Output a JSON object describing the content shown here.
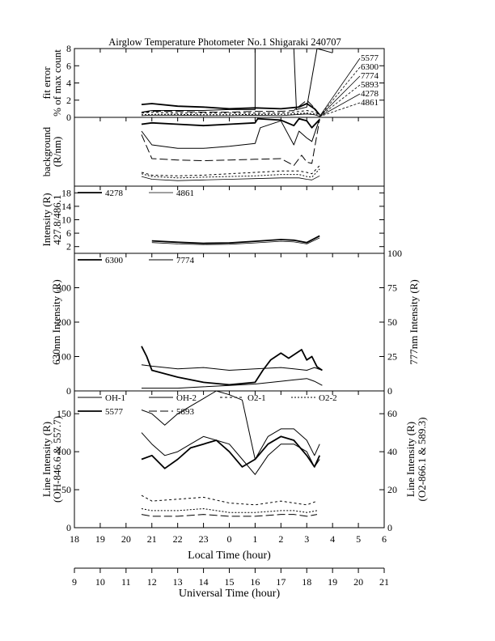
{
  "title": "Airglow Temperature Photometer No.1  Shigaraki  240707",
  "panels": [
    {
      "ylabel": [
        "fit error",
        "% of max count"
      ],
      "yticks": [
        "0",
        "2",
        "4",
        "6",
        "8"
      ]
    },
    {
      "ylabel": [
        "background",
        "(R/nm)"
      ],
      "yticks": []
    },
    {
      "ylabel": [
        "Intensity (R)",
        "427.8/486.1"
      ],
      "yticks": [
        "2",
        "6",
        "10",
        "14",
        "18"
      ],
      "legend": [
        "4278",
        "4861"
      ]
    },
    {
      "ylabel": [
        "630nm Intensity (R)"
      ],
      "ylabel_right": [
        "777nm Intensity (R)"
      ],
      "yticks": [
        "0",
        "100",
        "200",
        "300"
      ],
      "yticks_right": [
        "0",
        "25",
        "50",
        "75",
        "100"
      ],
      "legend": [
        "6300",
        "7774"
      ]
    },
    {
      "ylabel": [
        "Line Intensity (R)",
        "(OH-846.6 & 557.7)"
      ],
      "ylabel_right": [
        "Line Intensity (R)",
        "(O2-866.1 & 589.3)"
      ],
      "yticks": [
        "0",
        "50",
        "100",
        "150"
      ],
      "yticks_right": [
        "0",
        "20",
        "40",
        "60"
      ],
      "legend": [
        "OH-1",
        "OH-2",
        "O2-1",
        "O2-2",
        "5577",
        "5893"
      ]
    }
  ],
  "fit_error_legend": [
    "5577",
    "6300",
    "7774",
    "5893",
    "4278",
    "4861"
  ],
  "x_local": {
    "label": "Local Time (hour)",
    "ticks": [
      "18",
      "19",
      "20",
      "21",
      "22",
      "23",
      "0",
      "1",
      "2",
      "3",
      "4",
      "5",
      "6"
    ]
  },
  "x_ut": {
    "label": "Universal Time (hour)",
    "ticks": [
      "9",
      "10",
      "11",
      "12",
      "13",
      "14",
      "15",
      "16",
      "17",
      "18",
      "19",
      "20",
      "21"
    ]
  },
  "chart_data": {
    "type": "line",
    "title": "Airglow Temperature Photometer No.1  Shigaraki  240707",
    "xlabel": "Local Time (hour)",
    "xlabel_secondary": "Universal Time (hour)",
    "xlim_local_hours": [
      18,
      30
    ],
    "panels": [
      {
        "name": "fit error",
        "ylabel": "fit error % of max count",
        "ylim": [
          0,
          8
        ],
        "series": [
          {
            "x": [
              20.6,
              21.0,
              22.0,
              23.0,
              24.0,
              25.0,
              26.0,
              26.7,
              27.0,
              27.3,
              27.5
            ],
            "values": [
              1.5,
              1.6,
              1.3,
              1.2,
              1.0,
              1.1,
              1.0,
              1.2,
              1.6,
              1.0,
              0.3
            ]
          },
          {
            "x": [
              20.6,
              21.0,
              22.0,
              23.0,
              24.0,
              25.0,
              25.0,
              26.5,
              26.6,
              27.0,
              27.4,
              28.0
            ],
            "values": [
              0.6,
              0.8,
              0.8,
              0.8,
              0.9,
              0.9,
              8.0,
              8.0,
              0.9,
              1.2,
              8.0,
              7.5
            ]
          },
          {
            "x": [
              20.6,
              21.0,
              22.0,
              23.0,
              24.0,
              25.0,
              26.0,
              26.5,
              27.0,
              27.3,
              27.5
            ],
            "values": [
              0.6,
              0.7,
              0.7,
              0.6,
              0.6,
              0.7,
              0.7,
              0.8,
              2.0,
              1.1,
              0.3
            ]
          },
          {
            "x": [
              20.6,
              21.0,
              22.0,
              23.0,
              24.0,
              25.0,
              26.0,
              26.5,
              27.0,
              27.3,
              27.5
            ],
            "values": [
              0.5,
              0.6,
              0.5,
              0.5,
              0.5,
              0.5,
              0.5,
              0.6,
              0.8,
              0.6,
              0.3
            ]
          },
          {
            "x": [
              20.6,
              21.0,
              22.0,
              23.0,
              24.0,
              25.0,
              26.0,
              26.5,
              27.0,
              27.3,
              27.5
            ],
            "values": [
              0.3,
              0.35,
              0.35,
              0.3,
              0.3,
              0.35,
              0.35,
              0.4,
              0.5,
              0.4,
              0.2
            ]
          },
          {
            "x": [
              20.6,
              21.0,
              22.0,
              23.0,
              24.0,
              25.0,
              26.0,
              26.5,
              27.0,
              27.3,
              27.5
            ],
            "values": [
              0.2,
              0.25,
              0.25,
              0.2,
              0.2,
              0.25,
              0.2,
              0.3,
              0.4,
              0.3,
              0.1
            ]
          }
        ]
      },
      {
        "name": "background",
        "ylabel": "background (R/nm)",
        "ylim": [
          0,
          100
        ],
        "series": [
          {
            "x": [
              20.6,
              21.0,
              22.0,
              23.0,
              24.0,
              25.0,
              25.1,
              26.0,
              26.5,
              26.7,
              27.0,
              27.2,
              27.5
            ],
            "values": [
              90,
              92,
              90,
              88,
              90,
              92,
              98,
              96,
              88,
              98,
              95,
              85,
              97
            ]
          },
          {
            "x": [
              20.6,
              21.0,
              22.0,
              23.0,
              24.0,
              25.0,
              25.2,
              26.0,
              26.5,
              26.7,
              27.0,
              27.2,
              27.5
            ],
            "values": [
              80,
              60,
              55,
              55,
              58,
              62,
              85,
              95,
              60,
              80,
              70,
              65,
              98
            ]
          },
          {
            "x": [
              20.6,
              21.0,
              22.0,
              23.0,
              24.0,
              25.0,
              26.0,
              26.5,
              26.8,
              27.0,
              27.2,
              27.5
            ],
            "values": [
              75,
              40,
              38,
              37,
              38,
              39,
              40,
              30,
              45,
              35,
              33,
              97
            ]
          },
          {
            "x": [
              20.6,
              21.0,
              22.0,
              23.0,
              24.0,
              25.0,
              26.0,
              26.7,
              27.0,
              27.2,
              27.5
            ],
            "values": [
              20,
              16,
              15,
              16,
              18,
              20,
              22,
              22,
              20,
              18,
              30
            ]
          },
          {
            "x": [
              20.6,
              21.0,
              22.0,
              23.0,
              24.0,
              25.0,
              26.0,
              26.7,
              27.0,
              27.2,
              27.5
            ],
            "values": [
              18,
              14,
              12,
              13,
              14,
              15,
              17,
              17,
              14,
              13,
              25
            ]
          },
          {
            "x": [
              20.6,
              21.0,
              22.0,
              23.0,
              24.0,
              25.0,
              26.0,
              26.7,
              27.0,
              27.2,
              27.5
            ],
            "values": [
              14,
              10,
              8,
              9,
              10,
              11,
              12,
              12,
              10,
              9,
              15
            ]
          }
        ]
      },
      {
        "name": "Intensity 427.8/486.1",
        "ylabel": "Intensity (R) 427.8/486.1",
        "ylim": [
          0,
          20
        ],
        "series": [
          {
            "name": "4278",
            "x": [
              21.0,
              22.0,
              23.0,
              24.0,
              25.0,
              26.0,
              26.5,
              27.0,
              27.5
            ],
            "values": [
              3.7,
              3.3,
              3.0,
              3.1,
              3.6,
              4.1,
              3.9,
              3.2,
              5.2
            ]
          },
          {
            "name": "4861",
            "x": [
              21.0,
              22.0,
              23.0,
              24.0,
              25.0,
              26.0,
              26.5,
              27.0,
              27.5
            ],
            "values": [
              3.2,
              2.8,
              2.6,
              2.7,
              3.1,
              3.6,
              3.4,
              2.8,
              4.6
            ]
          }
        ]
      },
      {
        "name": "630nm / 777nm",
        "ylabel": "630nm Intensity (R)",
        "ylabel_right": "777nm Intensity (R)",
        "ylim": [
          0,
          400
        ],
        "ylim_right": [
          0,
          100
        ],
        "series": [
          {
            "name": "6300",
            "axis": "left",
            "x": [
              20.6,
              20.8,
              21.0,
              22.0,
              23.0,
              24.0,
              25.0,
              25.3,
              25.6,
              26.0,
              26.3,
              26.6,
              26.8,
              27.0,
              27.2,
              27.4,
              27.6
            ],
            "values": [
              130,
              100,
              60,
              40,
              25,
              18,
              25,
              60,
              90,
              110,
              95,
              110,
              120,
              90,
              100,
              70,
              60
            ]
          },
          {
            "name": "7774",
            "axis": "right",
            "x": [
              20.6,
              21.0,
              22.0,
              23.0,
              24.0,
              25.0,
              26.0,
              26.5,
              27.0,
              27.3,
              27.6
            ],
            "values": [
              19,
              18,
              16,
              17,
              15,
              16,
              17,
              16,
              15,
              17,
              15
            ]
          },
          {
            "name": "7774",
            "axis": "right",
            "x": [
              20.6,
              21.0,
              22.0,
              23.0,
              24.0,
              25.0,
              26.0,
              26.5,
              27.0,
              27.3,
              27.6
            ],
            "values": [
              2,
              2,
              2,
              3,
              4,
              5,
              7,
              8,
              9,
              7,
              4
            ]
          }
        ]
      },
      {
        "name": "Line Intensity",
        "ylabel": "Line Intensity (R) (OH-846.6 & 557.7)",
        "ylabel_right": "Line Intensity (R) (O2-866.1 & 589.3)",
        "ylim": [
          0,
          180
        ],
        "ylim_right": [
          0,
          72
        ],
        "series": [
          {
            "name": "OH-1",
            "axis": "left",
            "x": [
              20.6,
              21.0,
              21.5,
              22.0,
              22.5,
              23.0,
              23.5,
              24.0,
              24.5,
              25.0,
              25.5,
              26.0,
              26.5,
              27.0,
              27.3,
              27.5
            ],
            "values": [
              155,
              150,
              135,
              150,
              160,
              170,
              180,
              175,
              168,
              90,
              120,
              130,
              130,
              115,
              95,
              110
            ]
          },
          {
            "name": "OH-2",
            "axis": "left",
            "x": [
              20.6,
              21.0,
              21.5,
              22.0,
              22.5,
              23.0,
              23.5,
              24.0,
              24.5,
              25.0,
              25.5,
              26.0,
              26.5,
              27.0,
              27.3,
              27.5
            ],
            "values": [
              125,
              110,
              95,
              100,
              110,
              120,
              115,
              110,
              90,
              70,
              95,
              110,
              110,
              100,
              80,
              90
            ]
          },
          {
            "name": "5577",
            "axis": "left",
            "x": [
              20.6,
              21.0,
              21.5,
              22.0,
              22.5,
              23.0,
              23.5,
              24.0,
              24.5,
              25.0,
              25.5,
              26.0,
              26.5,
              27.0,
              27.3,
              27.5
            ],
            "values": [
              90,
              95,
              78,
              90,
              105,
              110,
              115,
              100,
              80,
              90,
              110,
              120,
              115,
              95,
              80,
              95
            ]
          },
          {
            "name": "O2-1",
            "axis": "right",
            "x": [
              20.6,
              21.0,
              22.0,
              23.0,
              24.0,
              25.0,
              26.0,
              26.5,
              27.0,
              27.4
            ],
            "values": [
              17,
              14,
              15,
              16,
              13,
              12,
              14,
              13,
              12,
              14
            ]
          },
          {
            "name": "O2-2",
            "axis": "right",
            "x": [
              20.6,
              21.0,
              22.0,
              23.0,
              24.0,
              25.0,
              26.0,
              26.5,
              27.0,
              27.4
            ],
            "values": [
              10,
              9,
              9,
              10,
              8,
              8,
              9,
              9,
              8,
              9
            ]
          },
          {
            "name": "5893",
            "axis": "right",
            "x": [
              20.6,
              21.0,
              22.0,
              23.0,
              24.0,
              25.0,
              26.0,
              26.5,
              27.0,
              27.4
            ],
            "values": [
              7,
              6,
              6,
              7,
              6,
              6,
              7,
              7,
              6,
              7
            ]
          }
        ]
      }
    ]
  }
}
